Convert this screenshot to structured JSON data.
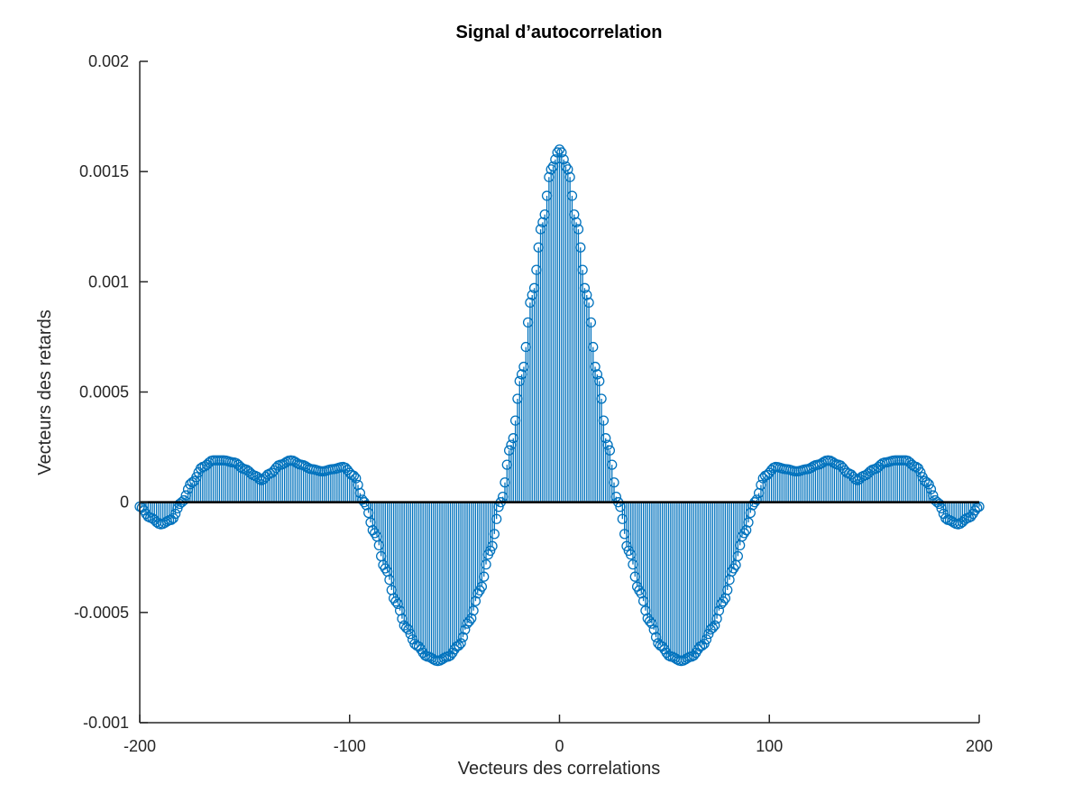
{
  "chart_data": {
    "type": "stem",
    "title": "Signal d’autocorrelation",
    "xlabel": "Vecteurs des correlations",
    "ylabel": "Vecteurs des retards",
    "xlim": [
      -200,
      200
    ],
    "ylim": [
      -0.001,
      0.002
    ],
    "x_ticks": [
      -200,
      -100,
      0,
      100,
      200
    ],
    "x_tick_labels": [
      "-200",
      "-100",
      "0",
      "100",
      "200"
    ],
    "y_ticks": [
      -0.001,
      -0.0005,
      0,
      0.0005,
      0.001,
      0.0015,
      0.002
    ],
    "y_tick_labels": [
      "-0.001",
      "-0.0005",
      "0",
      "0.0005",
      "0.001",
      "0.0015",
      "0.002"
    ],
    "grid": false,
    "series_color": "#0072BD",
    "baseline_color": "#000000",
    "series": [
      {
        "x_range": [
          -200,
          200,
          1
        ],
        "key_points": [
          [
            -200,
            -2e-05
          ],
          [
            -195,
            -7e-05
          ],
          [
            -190,
            -0.0001
          ],
          [
            -185,
            -8e-05
          ],
          [
            -180,
            0.0
          ],
          [
            -175,
            9e-05
          ],
          [
            -170,
            0.00016
          ],
          [
            -165,
            0.00019
          ],
          [
            -160,
            0.00019
          ],
          [
            -155,
            0.00018
          ],
          [
            -150,
            0.00015
          ],
          [
            -145,
            0.00012
          ],
          [
            -142,
            0.0001
          ],
          [
            -138,
            0.00013
          ],
          [
            -133,
            0.00017
          ],
          [
            -128,
            0.00019
          ],
          [
            -123,
            0.00017
          ],
          [
            -118,
            0.00015
          ],
          [
            -113,
            0.00014
          ],
          [
            -108,
            0.00015
          ],
          [
            -103,
            0.00016
          ],
          [
            -98,
            0.00012
          ],
          [
            -93,
            0.0
          ],
          [
            -88,
            -0.00014
          ],
          [
            -83,
            -0.0003
          ],
          [
            -78,
            -0.00045
          ],
          [
            -73,
            -0.00057
          ],
          [
            -68,
            -0.00065
          ],
          [
            -63,
            -0.0007
          ],
          [
            -58,
            -0.00072
          ],
          [
            -53,
            -0.0007
          ],
          [
            -48,
            -0.00065
          ],
          [
            -43,
            -0.00054
          ],
          [
            -38,
            -0.0004
          ],
          [
            -33,
            -0.00022
          ],
          [
            -28,
            0.0
          ],
          [
            -23,
            0.00026
          ],
          [
            -18,
            0.00058
          ],
          [
            -13,
            0.00094
          ],
          [
            -8,
            0.00127
          ],
          [
            -4,
            0.00151
          ],
          [
            0,
            0.0016
          ],
          [
            4,
            0.00151
          ],
          [
            8,
            0.00127
          ],
          [
            13,
            0.00094
          ],
          [
            18,
            0.00058
          ],
          [
            23,
            0.00026
          ],
          [
            28,
            0.0
          ],
          [
            33,
            -0.00022
          ],
          [
            38,
            -0.0004
          ],
          [
            43,
            -0.00054
          ],
          [
            48,
            -0.00065
          ],
          [
            53,
            -0.0007
          ],
          [
            58,
            -0.00072
          ],
          [
            63,
            -0.0007
          ],
          [
            68,
            -0.00065
          ],
          [
            73,
            -0.00057
          ],
          [
            78,
            -0.00045
          ],
          [
            83,
            -0.0003
          ],
          [
            88,
            -0.00014
          ],
          [
            93,
            0.0
          ],
          [
            98,
            0.00012
          ],
          [
            103,
            0.00016
          ],
          [
            108,
            0.00015
          ],
          [
            113,
            0.00014
          ],
          [
            118,
            0.00015
          ],
          [
            123,
            0.00017
          ],
          [
            128,
            0.00019
          ],
          [
            133,
            0.00017
          ],
          [
            138,
            0.00013
          ],
          [
            142,
            0.0001
          ],
          [
            145,
            0.00012
          ],
          [
            150,
            0.00015
          ],
          [
            155,
            0.00018
          ],
          [
            160,
            0.00019
          ],
          [
            165,
            0.00019
          ],
          [
            170,
            0.00016
          ],
          [
            175,
            9e-05
          ],
          [
            180,
            0.0
          ],
          [
            185,
            -8e-05
          ],
          [
            190,
            -0.0001
          ],
          [
            195,
            -7e-05
          ],
          [
            200,
            -2e-05
          ]
        ]
      }
    ]
  }
}
